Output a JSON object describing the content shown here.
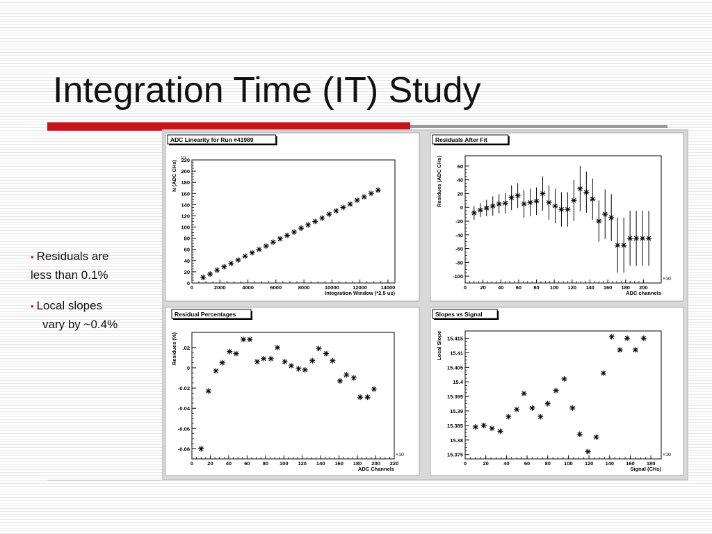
{
  "slide": {
    "title": "Integration Time (IT) Study",
    "bullets": [
      {
        "line1": "Residuals are",
        "line2": "less than 0.1%"
      },
      {
        "line1": "Local slopes",
        "line2": "vary by ~0.4%"
      }
    ],
    "colors": {
      "accent": "#c8131a",
      "rule": "#9a9a9a"
    }
  },
  "chart_data": [
    {
      "type": "scatter",
      "title": "ADC Linearity for Run #41989",
      "xlabel": "Integration Window (*2.5 us)",
      "ylabel": "N (ADC CHs)",
      "y_exponent": "10",
      "xlim": [
        0,
        14500
      ],
      "ylim": [
        0,
        220
      ],
      "xticks": [
        0,
        2000,
        4000,
        6000,
        8000,
        10000,
        12000,
        14000
      ],
      "yticks": [
        0,
        20,
        40,
        60,
        80,
        100,
        120,
        140,
        160,
        180,
        200,
        220
      ],
      "x": [
        800,
        1300,
        1800,
        2300,
        2800,
        3300,
        3800,
        4300,
        4800,
        5300,
        5800,
        6300,
        6800,
        7300,
        7800,
        8300,
        8800,
        9300,
        9800,
        10300,
        10800,
        11300,
        11800,
        12300,
        12800,
        13300
      ],
      "y": [
        10,
        16,
        23,
        29,
        35,
        41,
        48,
        54,
        60,
        66,
        73,
        79,
        85,
        91,
        98,
        104,
        110,
        116,
        123,
        129,
        135,
        141,
        148,
        154,
        160,
        166
      ]
    },
    {
      "type": "scatter",
      "title": "Residuals After Fit",
      "xlabel": "ADC channels",
      "ylabel": "Residues (ADC CHs)",
      "x_exponent": "10^3",
      "xlim": [
        0,
        220
      ],
      "ylim": [
        -110,
        75
      ],
      "xticks": [
        0,
        20,
        40,
        60,
        80,
        100,
        120,
        140,
        160,
        180,
        200
      ],
      "yticks": [
        -100,
        -80,
        -60,
        -40,
        -20,
        0,
        20,
        40,
        60
      ],
      "x": [
        10,
        17,
        24,
        31,
        38,
        45,
        52,
        59,
        66,
        73,
        80,
        87,
        94,
        101,
        108,
        115,
        122,
        129,
        136,
        143,
        150,
        157,
        164,
        171,
        178,
        185,
        192,
        199,
        206
      ],
      "y": [
        -8,
        -4,
        -1,
        2,
        5,
        6,
        14,
        17,
        5,
        7,
        9,
        20,
        7,
        2,
        -3,
        -3,
        10,
        27,
        22,
        12,
        -20,
        -10,
        -15,
        -55,
        -55,
        -45,
        -45,
        -45,
        -45
      ],
      "err": [
        10,
        10,
        12,
        14,
        14,
        15,
        18,
        18,
        20,
        20,
        20,
        25,
        25,
        25,
        25,
        25,
        30,
        33,
        30,
        30,
        30,
        36,
        34,
        40,
        40,
        40,
        40,
        40,
        40
      ]
    },
    {
      "type": "scatter",
      "title": "Residual Percentages",
      "xlabel": "ADC Channels",
      "ylabel": "Residues (%)",
      "x_exponent": "10^3",
      "xlim": [
        0,
        220
      ],
      "ylim": [
        -0.09,
        0.035
      ],
      "xticks": [
        0,
        20,
        40,
        60,
        80,
        100,
        120,
        140,
        160,
        180,
        200,
        220
      ],
      "yticks": [
        -0.08,
        -0.06,
        -0.04,
        -0.02,
        0,
        0.02
      ],
      "x": [
        10,
        18,
        26,
        33,
        41,
        48,
        56,
        63,
        71,
        78,
        86,
        93,
        101,
        108,
        116,
        123,
        131,
        138,
        146,
        153,
        161,
        168,
        176,
        183,
        191,
        198
      ],
      "y": [
        -0.08,
        -0.023,
        -0.003,
        0.005,
        0.016,
        0.014,
        0.028,
        0.028,
        0.006,
        0.009,
        0.009,
        0.02,
        0.006,
        0.002,
        -0.001,
        -0.002,
        0.007,
        0.019,
        0.014,
        0.007,
        -0.013,
        -0.007,
        -0.01,
        -0.029,
        -0.029,
        -0.021
      ]
    },
    {
      "type": "scatter",
      "title": "Slopes vs Signal",
      "xlabel": "Signal (CHs)",
      "ylabel": "Local Slope",
      "x_exponent": "10^3",
      "xlim": [
        0,
        190
      ],
      "ylim": [
        15.3735,
        15.4175
      ],
      "xticks": [
        0,
        20,
        40,
        60,
        80,
        100,
        120,
        140,
        160,
        180
      ],
      "yticks": [
        15.375,
        15.38,
        15.385,
        15.39,
        15.395,
        15.4,
        15.405,
        15.41,
        15.415
      ],
      "ytick_labels": [
        "15.375",
        "15.38",
        "15.385",
        "15.39",
        "15.395",
        "15.4",
        "15.405",
        "15.41",
        "15.415"
      ],
      "x": [
        10,
        18,
        26,
        34,
        42,
        50,
        57,
        65,
        73,
        80,
        88,
        96,
        104,
        111,
        119,
        127,
        134,
        142,
        150,
        157,
        165,
        173
      ],
      "y": [
        15.3845,
        15.385,
        15.384,
        15.383,
        15.388,
        15.3905,
        15.396,
        15.391,
        15.388,
        15.3925,
        15.397,
        15.401,
        15.391,
        15.382,
        15.376,
        15.381,
        15.403,
        15.4155,
        15.411,
        15.415,
        15.411,
        15.415
      ]
    }
  ]
}
